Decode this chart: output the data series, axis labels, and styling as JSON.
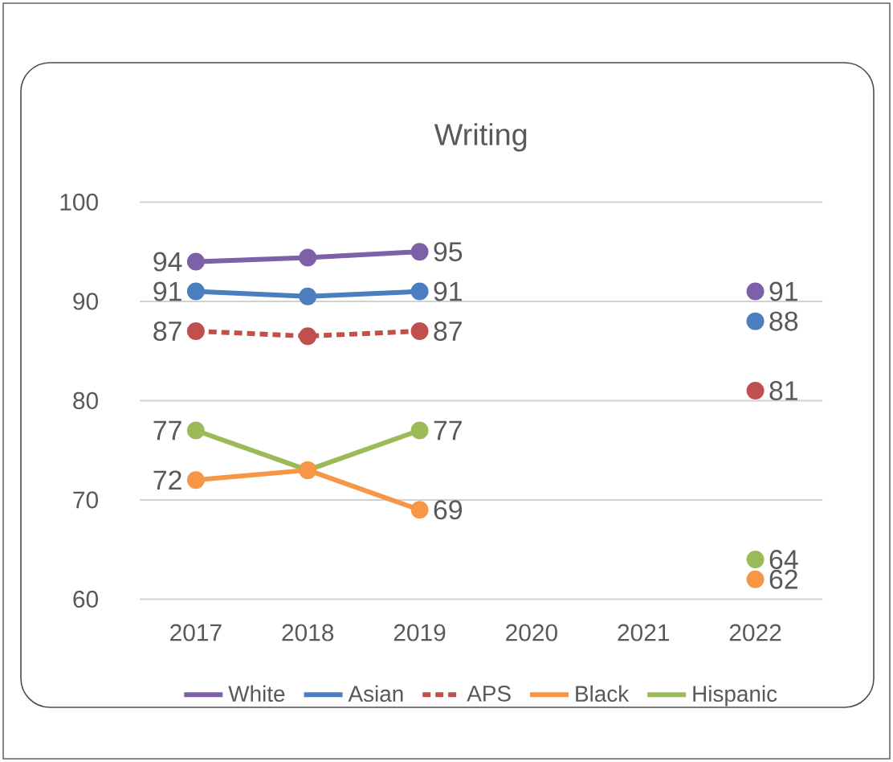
{
  "chart_data": {
    "type": "line",
    "title": "Writing",
    "categories": [
      "2017",
      "2018",
      "2019",
      "2020",
      "2021",
      "2022"
    ],
    "series": [
      {
        "name": "White",
        "color": "#7e60a8",
        "values": [
          94,
          94.4,
          95,
          null,
          null,
          91
        ],
        "value_labels": [
          "94",
          null,
          "95",
          null,
          null,
          "91"
        ]
      },
      {
        "name": "Asian",
        "color": "#4a7ebf",
        "values": [
          91,
          90.5,
          91,
          null,
          null,
          88
        ],
        "value_labels": [
          "91",
          null,
          "91",
          null,
          null,
          "88"
        ]
      },
      {
        "name": "APS",
        "color": "#c0504d",
        "line_style": "dashed",
        "values": [
          87,
          86.5,
          87,
          null,
          null,
          81
        ],
        "value_labels": [
          "87",
          null,
          "87",
          null,
          null,
          "81"
        ]
      },
      {
        "name": "Black",
        "color": "#f79646",
        "values": [
          72,
          73,
          69,
          null,
          null,
          62
        ],
        "value_labels": [
          "72",
          null,
          "69",
          null,
          null,
          "62"
        ]
      },
      {
        "name": "Hispanic",
        "color": "#9bbb59",
        "values": [
          77,
          73,
          77,
          null,
          null,
          64
        ],
        "value_labels": [
          "77",
          null,
          "77",
          null,
          null,
          "64"
        ]
      }
    ],
    "ylim": [
      60,
      100
    ],
    "yticks": [
      60,
      70,
      80,
      90,
      100
    ],
    "grid": "y",
    "legend": "bottom",
    "marker": "circle",
    "line_style": "solid"
  }
}
